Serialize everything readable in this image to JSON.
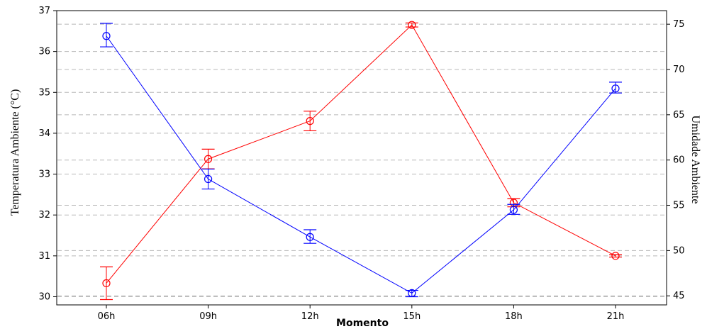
{
  "chart_data": {
    "type": "line",
    "categories": [
      "06h",
      "09h",
      "12h",
      "15h",
      "18h",
      "21h"
    ],
    "xlabel": "Momento",
    "ylabel_left": "Temperatura Ambiente (°C)",
    "ylabel_right": "Umidade Ambiente",
    "ylim_left": [
      29.8,
      37.0
    ],
    "yticks_left": [
      30,
      31,
      32,
      33,
      34,
      35,
      36,
      37
    ],
    "ylim_right": [
      44,
      76.5
    ],
    "yticks_right": [
      45,
      50,
      55,
      60,
      65,
      70,
      75
    ],
    "grid": "horizontal dashed",
    "series": [
      {
        "axis": "left",
        "color": "#ff0000",
        "values": [
          30.33,
          33.37,
          34.3,
          36.65,
          32.3,
          31.0
        ],
        "err_low": [
          29.93,
          33.13,
          34.06,
          36.6,
          32.2,
          30.97
        ],
        "err_high": [
          30.73,
          33.61,
          34.54,
          36.7,
          32.4,
          31.03
        ]
      },
      {
        "axis": "right",
        "color": "#0000ff",
        "values": [
          73.7,
          57.9,
          51.5,
          45.3,
          54.5,
          67.9
        ],
        "err_low": [
          72.5,
          56.8,
          50.8,
          44.9,
          54.0,
          67.4
        ],
        "err_high": [
          75.1,
          59.0,
          52.3,
          45.6,
          55.1,
          68.6
        ]
      }
    ]
  }
}
